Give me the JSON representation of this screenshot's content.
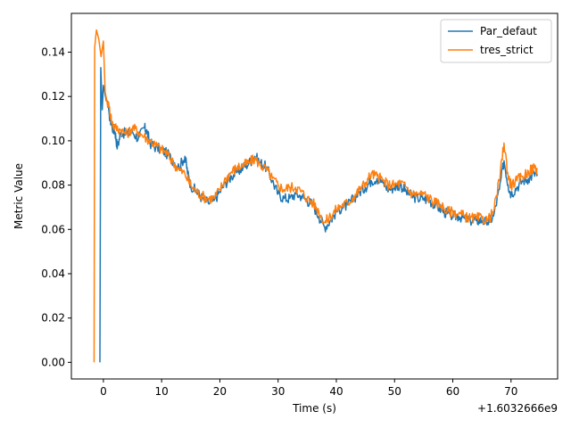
{
  "chart_data": {
    "type": "line",
    "xlabel": "Time (s)",
    "ylabel": "Metric Value",
    "x_offset_text": "+1.6032666e9",
    "xlim": [
      -5.5,
      78
    ],
    "ylim": [
      -0.0075,
      0.1575
    ],
    "xticks": [
      0,
      10,
      20,
      30,
      40,
      50,
      60,
      70
    ],
    "yticks": [
      0.0,
      0.02,
      0.04,
      0.06,
      0.08,
      0.1,
      0.12,
      0.14
    ],
    "ytick_labels": [
      "0.00",
      "0.02",
      "0.04",
      "0.06",
      "0.08",
      "0.10",
      "0.12",
      "0.14"
    ],
    "grid": false,
    "legend_position": "upper right",
    "series": [
      {
        "name": "Par_defaut",
        "color": "#1f77b4",
        "points": [
          [
            -0.6,
            0.0
          ],
          [
            -0.45,
            0.133
          ],
          [
            -0.2,
            0.114
          ],
          [
            0.0,
            0.125
          ],
          [
            0.5,
            0.118
          ],
          [
            1.0,
            0.112
          ],
          [
            1.5,
            0.106
          ],
          [
            2.0,
            0.104
          ],
          [
            2.4,
            0.097
          ],
          [
            3.0,
            0.104
          ],
          [
            4.0,
            0.103
          ],
          [
            5.0,
            0.104
          ],
          [
            6.0,
            0.101
          ],
          [
            7.0,
            0.106
          ],
          [
            7.5,
            0.104
          ],
          [
            8.0,
            0.099
          ],
          [
            9.0,
            0.097
          ],
          [
            10.0,
            0.096
          ],
          [
            11.0,
            0.094
          ],
          [
            12.0,
            0.091
          ],
          [
            13.0,
            0.088
          ],
          [
            14.0,
            0.093
          ],
          [
            14.5,
            0.085
          ],
          [
            15.0,
            0.08
          ],
          [
            16.0,
            0.077
          ],
          [
            17.0,
            0.074
          ],
          [
            18.0,
            0.072
          ],
          [
            19.0,
            0.073
          ],
          [
            20.0,
            0.077
          ],
          [
            21.0,
            0.081
          ],
          [
            22.0,
            0.084
          ],
          [
            23.0,
            0.086
          ],
          [
            24.0,
            0.088
          ],
          [
            25.0,
            0.09
          ],
          [
            26.0,
            0.093
          ],
          [
            27.0,
            0.09
          ],
          [
            28.0,
            0.088
          ],
          [
            29.0,
            0.082
          ],
          [
            30.0,
            0.076
          ],
          [
            31.0,
            0.074
          ],
          [
            32.0,
            0.074
          ],
          [
            33.0,
            0.076
          ],
          [
            34.0,
            0.075
          ],
          [
            35.0,
            0.073
          ],
          [
            36.0,
            0.071
          ],
          [
            37.0,
            0.066
          ],
          [
            38.0,
            0.061
          ],
          [
            39.0,
            0.064
          ],
          [
            40.0,
            0.068
          ],
          [
            41.0,
            0.07
          ],
          [
            42.0,
            0.071
          ],
          [
            43.0,
            0.074
          ],
          [
            44.0,
            0.077
          ],
          [
            45.0,
            0.079
          ],
          [
            46.0,
            0.082
          ],
          [
            47.0,
            0.083
          ],
          [
            48.0,
            0.081
          ],
          [
            49.0,
            0.078
          ],
          [
            50.0,
            0.079
          ],
          [
            51.0,
            0.08
          ],
          [
            52.0,
            0.077
          ],
          [
            53.0,
            0.075
          ],
          [
            54.0,
            0.074
          ],
          [
            55.0,
            0.074
          ],
          [
            56.0,
            0.073
          ],
          [
            57.0,
            0.071
          ],
          [
            58.0,
            0.069
          ],
          [
            59.0,
            0.067
          ],
          [
            60.0,
            0.066
          ],
          [
            61.0,
            0.066
          ],
          [
            62.0,
            0.065
          ],
          [
            63.0,
            0.064
          ],
          [
            64.0,
            0.064
          ],
          [
            65.0,
            0.064
          ],
          [
            66.0,
            0.063
          ],
          [
            67.0,
            0.066
          ],
          [
            68.0,
            0.078
          ],
          [
            68.8,
            0.091
          ],
          [
            69.5,
            0.08
          ],
          [
            70.0,
            0.076
          ],
          [
            71.0,
            0.079
          ],
          [
            72.0,
            0.082
          ],
          [
            73.0,
            0.083
          ],
          [
            74.0,
            0.085
          ],
          [
            74.5,
            0.085
          ]
        ]
      },
      {
        "name": "tres_strict",
        "color": "#ff7f0e",
        "points": [
          [
            -1.6,
            0.0
          ],
          [
            -1.5,
            0.142
          ],
          [
            -1.2,
            0.15
          ],
          [
            -0.8,
            0.146
          ],
          [
            -0.4,
            0.138
          ],
          [
            0.0,
            0.145
          ],
          [
            0.3,
            0.122
          ],
          [
            0.6,
            0.118
          ],
          [
            1.0,
            0.115
          ],
          [
            1.5,
            0.108
          ],
          [
            2.0,
            0.106
          ],
          [
            3.0,
            0.105
          ],
          [
            4.0,
            0.103
          ],
          [
            5.0,
            0.106
          ],
          [
            6.0,
            0.104
          ],
          [
            7.0,
            0.102
          ],
          [
            8.0,
            0.1
          ],
          [
            9.0,
            0.098
          ],
          [
            10.0,
            0.096
          ],
          [
            11.0,
            0.094
          ],
          [
            12.0,
            0.09
          ],
          [
            13.0,
            0.087
          ],
          [
            14.0,
            0.085
          ],
          [
            15.0,
            0.08
          ],
          [
            16.0,
            0.077
          ],
          [
            17.0,
            0.075
          ],
          [
            18.0,
            0.074
          ],
          [
            19.0,
            0.074
          ],
          [
            20.0,
            0.078
          ],
          [
            21.0,
            0.083
          ],
          [
            22.0,
            0.086
          ],
          [
            23.0,
            0.088
          ],
          [
            24.0,
            0.089
          ],
          [
            25.0,
            0.09
          ],
          [
            26.0,
            0.092
          ],
          [
            27.0,
            0.089
          ],
          [
            28.0,
            0.087
          ],
          [
            29.0,
            0.083
          ],
          [
            30.0,
            0.08
          ],
          [
            31.0,
            0.078
          ],
          [
            32.0,
            0.079
          ],
          [
            33.0,
            0.079
          ],
          [
            34.0,
            0.077
          ],
          [
            35.0,
            0.074
          ],
          [
            36.0,
            0.072
          ],
          [
            37.0,
            0.068
          ],
          [
            38.0,
            0.063
          ],
          [
            39.0,
            0.066
          ],
          [
            40.0,
            0.069
          ],
          [
            41.0,
            0.071
          ],
          [
            42.0,
            0.072
          ],
          [
            43.0,
            0.075
          ],
          [
            44.0,
            0.078
          ],
          [
            45.0,
            0.081
          ],
          [
            46.0,
            0.085
          ],
          [
            47.0,
            0.084
          ],
          [
            48.0,
            0.082
          ],
          [
            49.0,
            0.08
          ],
          [
            50.0,
            0.08
          ],
          [
            51.0,
            0.081
          ],
          [
            52.0,
            0.079
          ],
          [
            53.0,
            0.076
          ],
          [
            54.0,
            0.076
          ],
          [
            55.0,
            0.076
          ],
          [
            56.0,
            0.074
          ],
          [
            57.0,
            0.072
          ],
          [
            58.0,
            0.071
          ],
          [
            59.0,
            0.068
          ],
          [
            60.0,
            0.068
          ],
          [
            61.0,
            0.067
          ],
          [
            62.0,
            0.066
          ],
          [
            63.0,
            0.065
          ],
          [
            64.0,
            0.065
          ],
          [
            65.0,
            0.065
          ],
          [
            66.0,
            0.064
          ],
          [
            67.0,
            0.068
          ],
          [
            68.0,
            0.082
          ],
          [
            68.8,
            0.099
          ],
          [
            69.5,
            0.084
          ],
          [
            70.0,
            0.08
          ],
          [
            71.0,
            0.082
          ],
          [
            72.0,
            0.084
          ],
          [
            73.0,
            0.086
          ],
          [
            74.0,
            0.088
          ],
          [
            74.5,
            0.087
          ]
        ]
      }
    ]
  }
}
